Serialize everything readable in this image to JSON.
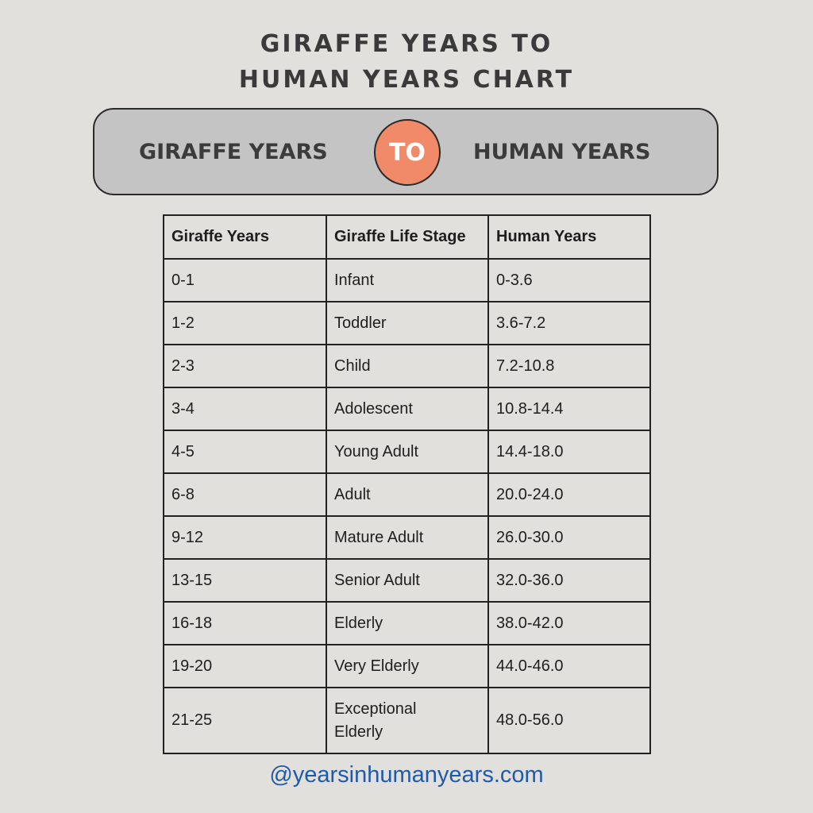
{
  "title": {
    "line1": "GIRAFFE YEARS TO",
    "line2": "HUMAN YEARS CHART"
  },
  "banner": {
    "left_label": "GIRAFFE YEARS",
    "connector": "TO",
    "right_label": "HUMAN YEARS",
    "connector_color": "#f08a68",
    "background_color": "#c4c4c4"
  },
  "table": {
    "headers": [
      "Giraffe Years",
      "Giraffe Life Stage",
      "Human Years"
    ],
    "rows": [
      [
        "0-1",
        "Infant",
        "0-3.6"
      ],
      [
        "1-2",
        "Toddler",
        "3.6-7.2"
      ],
      [
        "2-3",
        "Child",
        "7.2-10.8"
      ],
      [
        "3-4",
        "Adolescent",
        "10.8-14.4"
      ],
      [
        "4-5",
        "Young Adult",
        "14.4-18.0"
      ],
      [
        "6-8",
        "Adult",
        "20.0-24.0"
      ],
      [
        "9-12",
        "Mature Adult",
        "26.0-30.0"
      ],
      [
        "13-15",
        "Senior Adult",
        "32.0-36.0"
      ],
      [
        "16-18",
        "Elderly",
        "38.0-42.0"
      ],
      [
        "19-20",
        "Very Elderly",
        "44.0-46.0"
      ],
      [
        "21-25",
        "Exceptional Elderly",
        "48.0-56.0"
      ]
    ]
  },
  "footer": {
    "handle": "@yearsinhumanyears.com",
    "color": "#1f5aa8"
  },
  "chart_data": {
    "type": "table",
    "title": "GIRAFFE YEARS TO HUMAN YEARS CHART",
    "columns": [
      "Giraffe Years",
      "Giraffe Life Stage",
      "Human Years"
    ],
    "rows": [
      [
        "0-1",
        "Infant",
        "0-3.6"
      ],
      [
        "1-2",
        "Toddler",
        "3.6-7.2"
      ],
      [
        "2-3",
        "Child",
        "7.2-10.8"
      ],
      [
        "3-4",
        "Adolescent",
        "10.8-14.4"
      ],
      [
        "4-5",
        "Young Adult",
        "14.4-18.0"
      ],
      [
        "6-8",
        "Adult",
        "20.0-24.0"
      ],
      [
        "9-12",
        "Mature Adult",
        "26.0-30.0"
      ],
      [
        "13-15",
        "Senior Adult",
        "32.0-36.0"
      ],
      [
        "16-18",
        "Elderly",
        "38.0-42.0"
      ],
      [
        "19-20",
        "Very Elderly",
        "44.0-46.0"
      ],
      [
        "21-25",
        "Exceptional Elderly",
        "48.0-56.0"
      ]
    ]
  }
}
